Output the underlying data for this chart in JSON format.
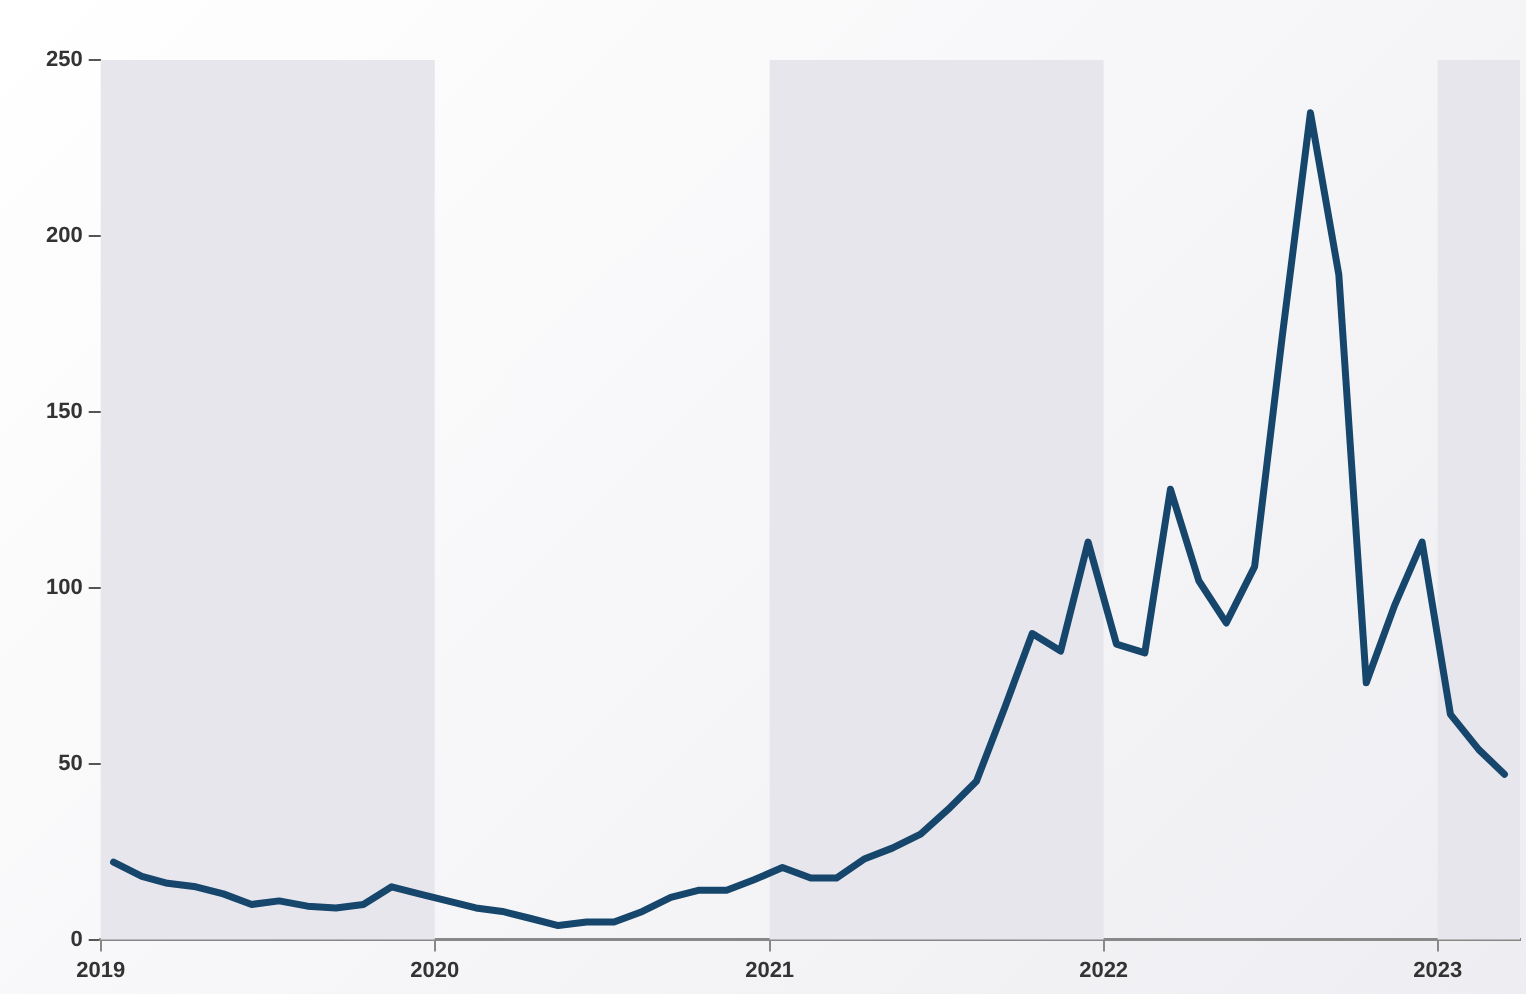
{
  "chart_data": {
    "type": "line",
    "x": [
      "2019-01-15",
      "2019-02-15",
      "2019-03-15",
      "2019-04-15",
      "2019-05-15",
      "2019-06-15",
      "2019-07-15",
      "2019-08-15",
      "2019-09-15",
      "2019-10-15",
      "2019-11-15",
      "2019-12-15",
      "2020-01-15",
      "2020-02-15",
      "2020-03-15",
      "2020-04-15",
      "2020-05-15",
      "2020-06-15",
      "2020-07-15",
      "2020-08-15",
      "2020-09-15",
      "2020-10-15",
      "2020-11-15",
      "2020-12-15",
      "2021-01-15",
      "2021-02-15",
      "2021-03-15",
      "2021-04-15",
      "2021-05-15",
      "2021-06-15",
      "2021-07-15",
      "2021-08-15",
      "2021-09-15",
      "2021-10-15",
      "2021-11-15",
      "2021-12-15",
      "2022-01-15",
      "2022-02-15",
      "2022-03-15",
      "2022-04-15",
      "2022-05-15",
      "2022-06-15",
      "2022-07-15",
      "2022-08-15",
      "2022-09-15",
      "2022-10-15",
      "2022-11-15",
      "2022-12-15",
      "2023-01-15",
      "2023-02-15",
      "2023-03-15"
    ],
    "series": [
      {
        "color": "#17466c",
        "values": [
          22,
          18,
          16,
          15,
          13,
          10,
          11,
          9.5,
          9,
          10,
          15,
          13,
          11,
          9,
          8,
          6,
          4,
          5,
          5,
          8,
          12,
          14,
          14,
          17,
          20.5,
          17.5,
          17.5,
          23,
          26,
          30,
          37,
          45,
          66,
          87,
          82,
          113,
          84,
          81.5,
          128,
          102,
          90,
          106,
          171,
          235,
          189,
          73,
          95,
          113,
          64,
          54,
          47
        ]
      }
    ],
    "xlim": [
      "2019-01-01",
      "2023-04-01"
    ],
    "xticks": [
      "2019",
      "2020",
      "2021",
      "2022",
      "2023"
    ],
    "ylim": [
      0,
      250
    ],
    "yticks": [
      0,
      50,
      100,
      150,
      200,
      250
    ],
    "bands": [
      {
        "axis": "x",
        "from": "2019-01-01",
        "to": "2020-01-01",
        "color": "#e6e6ec"
      },
      {
        "axis": "x",
        "from": "2021-01-01",
        "to": "2022-01-01",
        "color": "#e6e6ec"
      },
      {
        "axis": "x",
        "from": "2023-01-01",
        "to": "2023-04-01",
        "color": "#e6e6ec"
      }
    ],
    "grid": false,
    "legend": false,
    "marker": "none",
    "line_style": "solid"
  }
}
